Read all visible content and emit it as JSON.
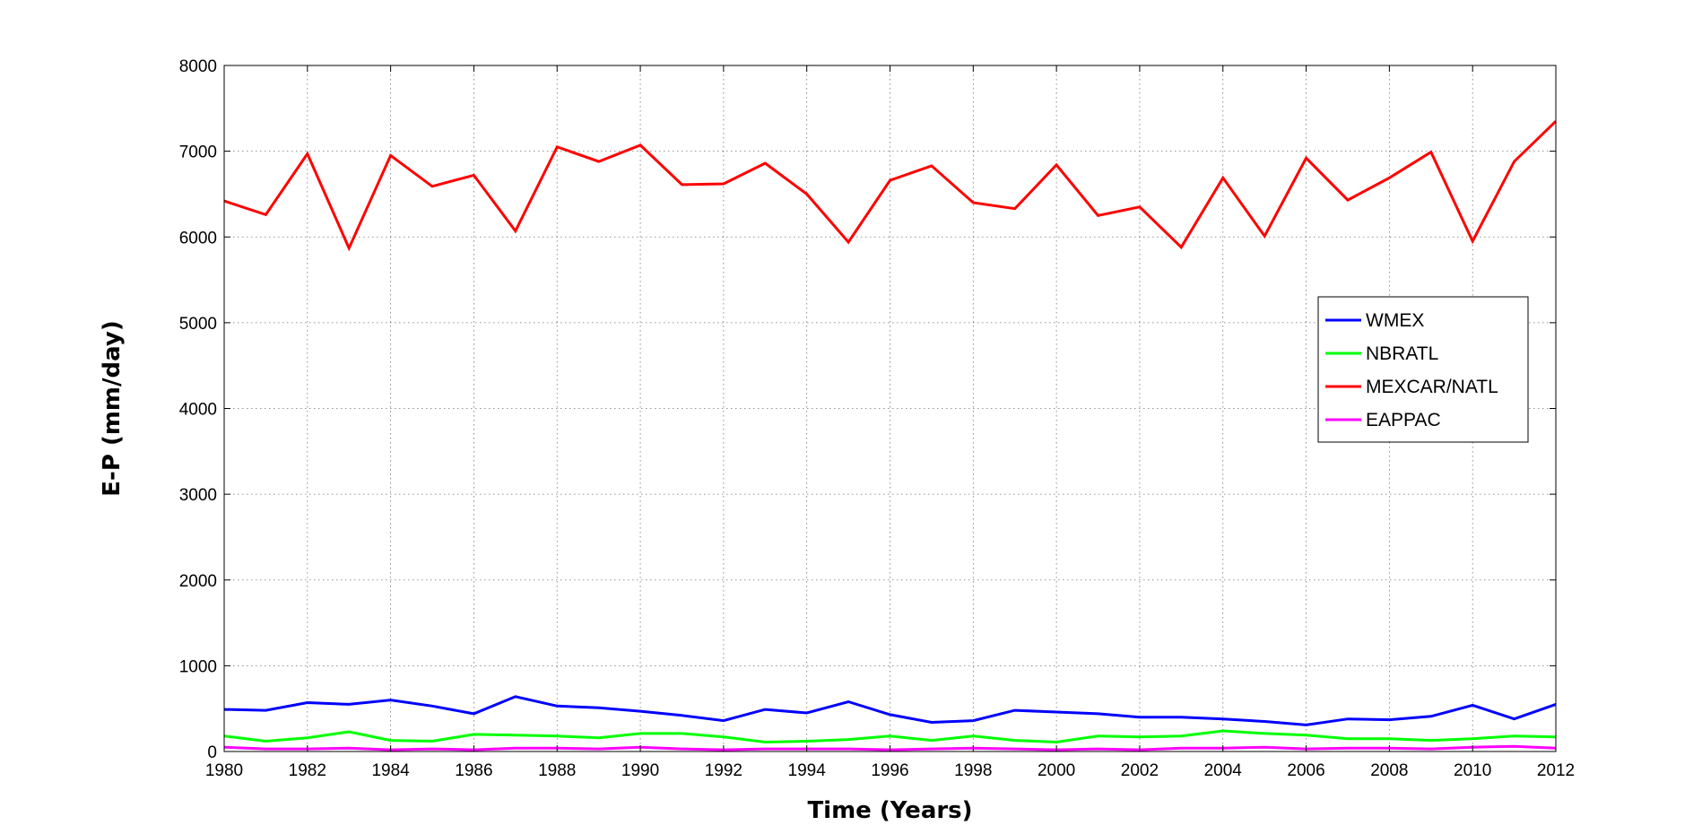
{
  "chart_data": {
    "type": "line",
    "title": "",
    "xlabel": "Time (Years)",
    "ylabel": "E-P (mm/day)",
    "xlim": [
      1980,
      2012
    ],
    "ylim": [
      0,
      8000
    ],
    "xticks": [
      "1980",
      "1982",
      "1984",
      "1986",
      "1988",
      "1990",
      "1992",
      "1994",
      "1996",
      "1998",
      "2000",
      "2002",
      "2004",
      "2006",
      "2008",
      "2010",
      "2012"
    ],
    "yticks": [
      "0",
      "1000",
      "2000",
      "3000",
      "4000",
      "5000",
      "6000",
      "7000",
      "8000"
    ],
    "grid": true,
    "legend_position": "right",
    "x": [
      1980,
      1981,
      1982,
      1983,
      1984,
      1985,
      1986,
      1987,
      1988,
      1989,
      1990,
      1991,
      1992,
      1993,
      1994,
      1995,
      1996,
      1997,
      1998,
      1999,
      2000,
      2001,
      2002,
      2003,
      2004,
      2005,
      2006,
      2007,
      2008,
      2009,
      2010,
      2011,
      2012
    ],
    "series": [
      {
        "name": "WMEX",
        "color": "#0000ff",
        "values": [
          490,
          480,
          570,
          550,
          600,
          530,
          440,
          640,
          530,
          510,
          470,
          420,
          360,
          490,
          450,
          580,
          430,
          340,
          360,
          480,
          460,
          440,
          400,
          400,
          380,
          350,
          310,
          380,
          370,
          410,
          540,
          380,
          550
        ]
      },
      {
        "name": "NBRATL",
        "color": "#00ff00",
        "values": [
          180,
          120,
          160,
          230,
          130,
          120,
          200,
          190,
          180,
          160,
          210,
          210,
          170,
          110,
          120,
          140,
          180,
          130,
          180,
          130,
          110,
          180,
          170,
          180,
          240,
          210,
          190,
          150,
          150,
          130,
          150,
          180,
          170
        ]
      },
      {
        "name": "MEXCAR/NATL",
        "color": "#ff0000",
        "values": [
          6420,
          6260,
          6970,
          5870,
          6950,
          6590,
          6720,
          6070,
          7050,
          6880,
          7070,
          6610,
          6620,
          6860,
          6500,
          5940,
          6660,
          6830,
          6400,
          6330,
          6840,
          6250,
          6350,
          5880,
          6690,
          6010,
          6920,
          6430,
          6690,
          6990,
          5950,
          6880,
          7350
        ]
      },
      {
        "name": "EAPPAC",
        "color": "#ff00ff",
        "values": [
          50,
          30,
          30,
          40,
          20,
          30,
          20,
          40,
          40,
          30,
          50,
          30,
          20,
          30,
          30,
          30,
          20,
          30,
          40,
          30,
          20,
          30,
          20,
          40,
          40,
          50,
          30,
          40,
          40,
          30,
          50,
          60,
          40
        ]
      }
    ]
  }
}
